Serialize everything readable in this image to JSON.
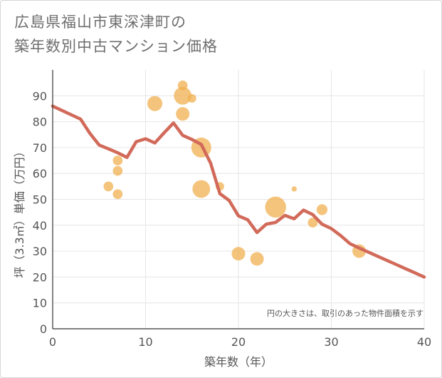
{
  "title_lines": [
    "広島県福山市東深津町の",
    "築年数別中古マンション価格"
  ],
  "chart_data": {
    "type": "scatter",
    "title": "広島県福山市東深津町の築年数別中古マンション価格",
    "xlabel": "築年数（年）",
    "ylabel": "坪（3.3㎡）単価（万円）",
    "xlim": [
      0,
      40
    ],
    "ylim": [
      0,
      100
    ],
    "x_ticks": [
      0,
      10,
      20,
      30,
      40
    ],
    "y_ticks": [
      0,
      10,
      20,
      30,
      40,
      50,
      60,
      70,
      80,
      90
    ],
    "note": "円の大きさは、取引のあった物件面積を示す",
    "colors": {
      "bubble": "#f0b050",
      "line": "#d26a5a",
      "grid": "#e6e6e6",
      "axis": "#333333"
    },
    "bubbles": [
      {
        "x": 6,
        "y": 55,
        "size": 2
      },
      {
        "x": 7,
        "y": 65,
        "size": 2
      },
      {
        "x": 7,
        "y": 61,
        "size": 2
      },
      {
        "x": 7,
        "y": 52,
        "size": 2
      },
      {
        "x": 11,
        "y": 87,
        "size": 5
      },
      {
        "x": 14,
        "y": 94,
        "size": 2
      },
      {
        "x": 14,
        "y": 90,
        "size": 7
      },
      {
        "x": 15,
        "y": 89,
        "size": 1.5
      },
      {
        "x": 14,
        "y": 83,
        "size": 4
      },
      {
        "x": 16,
        "y": 70,
        "size": 9
      },
      {
        "x": 16,
        "y": 54,
        "size": 7
      },
      {
        "x": 18,
        "y": 55,
        "size": 1.5
      },
      {
        "x": 20,
        "y": 29,
        "size": 4
      },
      {
        "x": 22,
        "y": 27,
        "size": 4
      },
      {
        "x": 24,
        "y": 47,
        "size": 10
      },
      {
        "x": 26,
        "y": 54,
        "size": 0.5
      },
      {
        "x": 28,
        "y": 41,
        "size": 2
      },
      {
        "x": 29,
        "y": 46,
        "size": 2.5
      },
      {
        "x": 33,
        "y": 30,
        "size": 4
      }
    ],
    "series": [
      {
        "name": "trend",
        "x": [
          0,
          3,
          4,
          5,
          6,
          7,
          8,
          9,
          10,
          11,
          12,
          13,
          14,
          15,
          16,
          17,
          18,
          19,
          20,
          21,
          22,
          23,
          24,
          25,
          26,
          27,
          28,
          29,
          30,
          31,
          32,
          33,
          34,
          35,
          36,
          37,
          38,
          39,
          40
        ],
        "values": [
          86,
          81,
          75.5,
          71,
          69.5,
          68,
          66.2,
          72.3,
          73.4,
          71.8,
          75.7,
          79.5,
          74.7,
          73.1,
          71.2,
          64,
          52.2,
          49.6,
          43.6,
          42.1,
          37.2,
          40.4,
          41.1,
          43.8,
          42.5,
          45.8,
          44.1,
          40.4,
          38.7,
          36,
          32.9,
          31.2,
          29.6,
          28,
          26.4,
          24.8,
          23.2,
          21.6,
          20
        ]
      }
    ]
  }
}
